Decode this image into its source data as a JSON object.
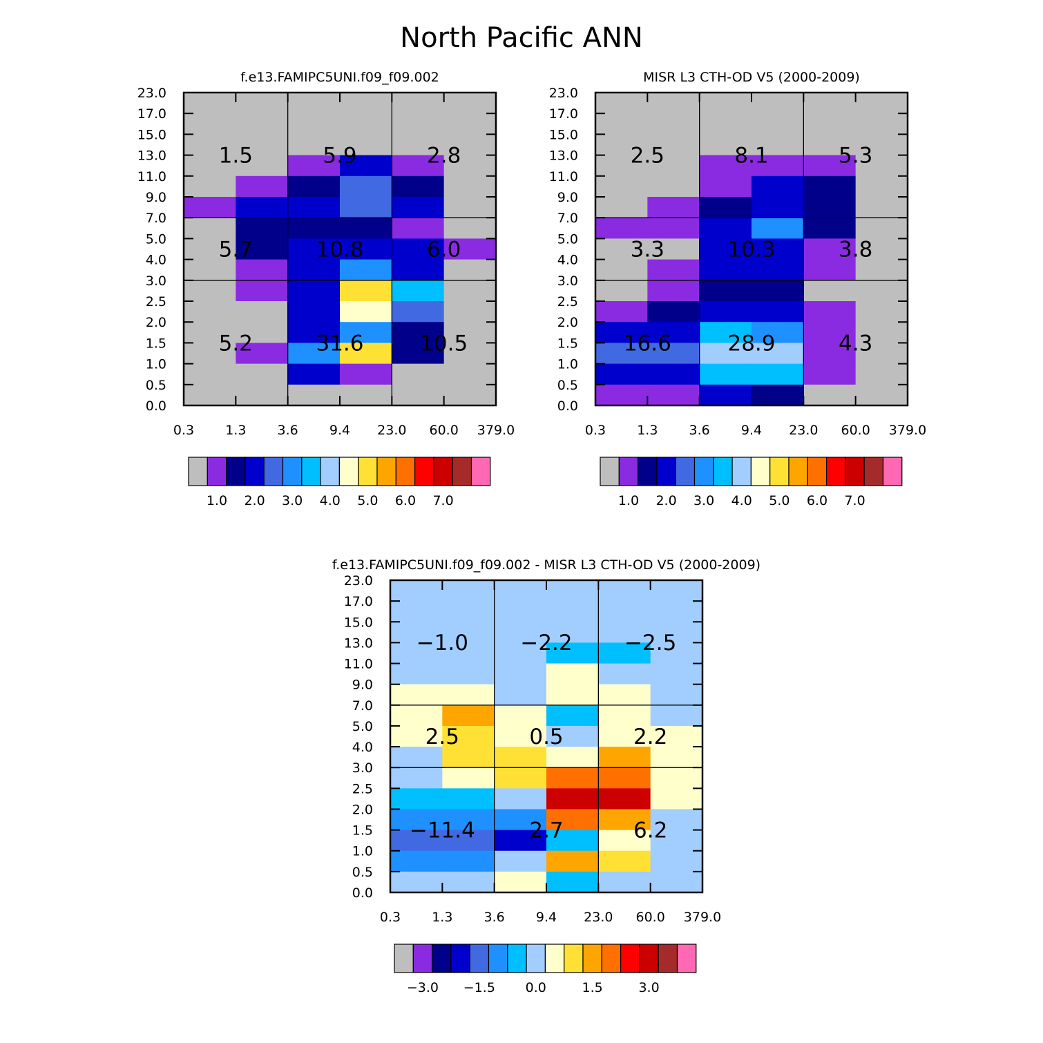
{
  "page_title": "North Pacific ANN",
  "colors": {
    "palette": [
      "#bebebe",
      "#8a2be2",
      "#00008b",
      "#0000cd",
      "#4169e1",
      "#1e90ff",
      "#00bfff",
      "#a2cdff",
      "#ffffcc",
      "#ffe135",
      "#ffa500",
      "#ff7000",
      "#ff0000",
      "#cd0000",
      "#a52a2a",
      "#ff69b4"
    ],
    "gridline": "#000000"
  },
  "chart_data": [
    {
      "type": "heatmap",
      "title": "f.e13.FAMIPC5UNI.f09_f09.002",
      "xlabel": "",
      "ylabel": "",
      "x_tick_labels": [
        "0.3",
        "1.3",
        "3.6",
        "9.4",
        "23.0",
        "60.0",
        "379.0"
      ],
      "y_tick_labels": [
        "0.0",
        "0.5",
        "1.0",
        "1.5",
        "2.0",
        "2.5",
        "3.0",
        "4.0",
        "5.0",
        "7.0",
        "9.0",
        "11.0",
        "13.0",
        "15.0",
        "17.0",
        "23.0"
      ],
      "cell_color_index_rows_top_to_bottom": [
        [
          0,
          0,
          0,
          0,
          0,
          0
        ],
        [
          0,
          0,
          0,
          0,
          0,
          0
        ],
        [
          0,
          0,
          0,
          0,
          0,
          0
        ],
        [
          0,
          0,
          1,
          3,
          1,
          0
        ],
        [
          0,
          1,
          2,
          4,
          2,
          0
        ],
        [
          1,
          3,
          3,
          4,
          3,
          0
        ],
        [
          0,
          2,
          2,
          2,
          1,
          0
        ],
        [
          0,
          2,
          3,
          3,
          3,
          1
        ],
        [
          0,
          1,
          3,
          5,
          3,
          0
        ],
        [
          0,
          1,
          3,
          9,
          6,
          0
        ],
        [
          0,
          0,
          3,
          8,
          4,
          0
        ],
        [
          0,
          0,
          3,
          5,
          2,
          0
        ],
        [
          0,
          1,
          5,
          9,
          2,
          0
        ],
        [
          0,
          0,
          3,
          1,
          0,
          0
        ],
        [
          0,
          0,
          0,
          0,
          0,
          0
        ]
      ],
      "region_values": [
        [
          "1.5",
          "5.9",
          "2.8"
        ],
        [
          "5.7",
          "10.8",
          "6.0"
        ],
        [
          "5.2",
          "31.6",
          "10.5"
        ]
      ],
      "colorbar_labels": [
        "1.0",
        "2.0",
        "3.0",
        "4.0",
        "5.0",
        "6.0",
        "7.0"
      ]
    },
    {
      "type": "heatmap",
      "title": "MISR L3 CTH-OD V5 (2000-2009)",
      "xlabel": "",
      "ylabel": "",
      "x_tick_labels": [
        "0.3",
        "1.3",
        "3.6",
        "9.4",
        "23.0",
        "60.0",
        "379.0"
      ],
      "y_tick_labels": [
        "0.0",
        "0.5",
        "1.0",
        "1.5",
        "2.0",
        "2.5",
        "3.0",
        "4.0",
        "5.0",
        "7.0",
        "9.0",
        "11.0",
        "13.0",
        "15.0",
        "17.0",
        "23.0"
      ],
      "cell_color_index_rows_top_to_bottom": [
        [
          0,
          0,
          0,
          0,
          0,
          0
        ],
        [
          0,
          0,
          0,
          0,
          0,
          0
        ],
        [
          0,
          0,
          0,
          0,
          0,
          0
        ],
        [
          0,
          0,
          1,
          1,
          1,
          0
        ],
        [
          0,
          0,
          1,
          3,
          2,
          0
        ],
        [
          0,
          1,
          2,
          3,
          2,
          0
        ],
        [
          1,
          1,
          3,
          5,
          2,
          0
        ],
        [
          0,
          0,
          3,
          3,
          1,
          0
        ],
        [
          0,
          1,
          3,
          3,
          1,
          0
        ],
        [
          0,
          1,
          2,
          2,
          0,
          0
        ],
        [
          1,
          2,
          3,
          3,
          1,
          0
        ],
        [
          3,
          3,
          6,
          5,
          1,
          0
        ],
        [
          4,
          4,
          7,
          7,
          1,
          0
        ],
        [
          3,
          3,
          6,
          6,
          1,
          0
        ],
        [
          1,
          1,
          3,
          2,
          0,
          0
        ]
      ],
      "region_values": [
        [
          "2.5",
          "8.1",
          "5.3"
        ],
        [
          "3.3",
          "10.3",
          "3.8"
        ],
        [
          "16.6",
          "28.9",
          "4.3"
        ]
      ],
      "colorbar_labels": [
        "1.0",
        "2.0",
        "3.0",
        "4.0",
        "5.0",
        "6.0",
        "7.0"
      ]
    },
    {
      "type": "heatmap",
      "title": "f.e13.FAMIPC5UNI.f09_f09.002 - MISR L3 CTH-OD V5 (2000-2009)",
      "xlabel": "",
      "ylabel": "",
      "x_tick_labels": [
        "0.3",
        "1.3",
        "3.6",
        "9.4",
        "23.0",
        "60.0",
        "379.0"
      ],
      "y_tick_labels": [
        "0.0",
        "0.5",
        "1.0",
        "1.5",
        "2.0",
        "2.5",
        "3.0",
        "4.0",
        "5.0",
        "7.0",
        "9.0",
        "11.0",
        "13.0",
        "15.0",
        "17.0",
        "23.0"
      ],
      "cell_color_index_rows_top_to_bottom": [
        [
          7,
          7,
          7,
          7,
          7,
          7
        ],
        [
          7,
          7,
          7,
          7,
          7,
          7
        ],
        [
          7,
          7,
          7,
          7,
          7,
          7
        ],
        [
          7,
          7,
          7,
          6,
          6,
          7
        ],
        [
          7,
          7,
          7,
          8,
          7,
          7
        ],
        [
          8,
          8,
          7,
          8,
          8,
          7
        ],
        [
          8,
          10,
          8,
          6,
          8,
          7
        ],
        [
          8,
          9,
          8,
          7,
          8,
          8
        ],
        [
          7,
          9,
          9,
          8,
          10,
          8
        ],
        [
          7,
          8,
          9,
          11,
          11,
          8
        ],
        [
          6,
          6,
          7,
          13,
          13,
          8
        ],
        [
          5,
          5,
          5,
          11,
          10,
          7
        ],
        [
          4,
          4,
          3,
          6,
          8,
          7
        ],
        [
          5,
          5,
          7,
          10,
          9,
          7
        ],
        [
          7,
          7,
          8,
          6,
          7,
          7
        ]
      ],
      "region_values": [
        [
          "−1.0",
          "−2.2",
          "−2.5"
        ],
        [
          "2.5",
          "0.5",
          "2.2"
        ],
        [
          "−11.4",
          "2.7",
          "6.2"
        ]
      ],
      "colorbar_labels": [
        "−3.0",
        "−1.5",
        "0.0",
        "1.5",
        "3.0"
      ]
    }
  ]
}
